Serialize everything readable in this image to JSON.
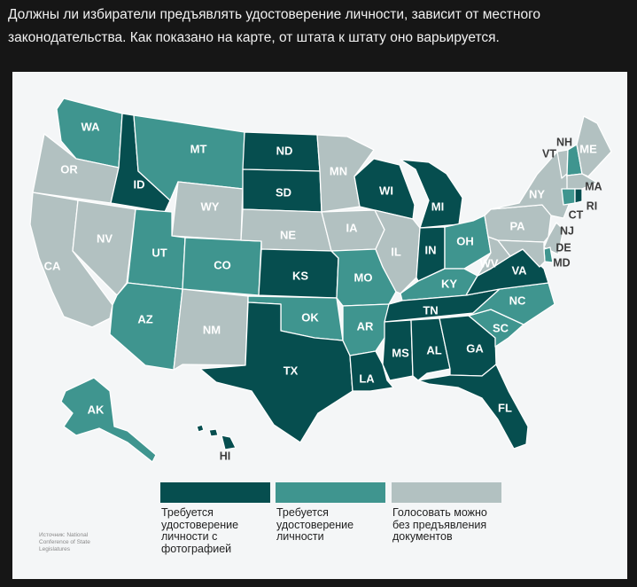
{
  "caption": "Должны ли избиратели предъявлять удостоверение личности, зависит от местного законодательства. Как показано на карте, от штата к штату оно варьируется.",
  "colors": {
    "photo_id": "#064e4f",
    "id": "#3f958f",
    "no_document": "#b2c1c1",
    "border": "#ffffff",
    "panel": "#f4f6f7"
  },
  "legend": {
    "photo_id": "Требуется удостоверение личности с фотографией",
    "id": "Требуется удостоверение личности",
    "no_document": "Голосовать можно без предъявления документов"
  },
  "source": "Источник: National Conference of State Legislatures",
  "states": {
    "WA": {
      "label": "WA",
      "category": "id"
    },
    "OR": {
      "label": "OR",
      "category": "no_document"
    },
    "CA": {
      "label": "CA",
      "category": "no_document"
    },
    "ID": {
      "label": "ID",
      "category": "photo_id"
    },
    "NV": {
      "label": "NV",
      "category": "no_document"
    },
    "MT": {
      "label": "MT",
      "category": "id"
    },
    "WY": {
      "label": "WY",
      "category": "no_document"
    },
    "UT": {
      "label": "UT",
      "category": "id"
    },
    "AZ": {
      "label": "AZ",
      "category": "id"
    },
    "CO": {
      "label": "CO",
      "category": "id"
    },
    "NM": {
      "label": "NM",
      "category": "no_document"
    },
    "ND": {
      "label": "ND",
      "category": "photo_id"
    },
    "SD": {
      "label": "SD",
      "category": "photo_id"
    },
    "NE": {
      "label": "NE",
      "category": "no_document"
    },
    "KS": {
      "label": "KS",
      "category": "photo_id"
    },
    "OK": {
      "label": "OK",
      "category": "id"
    },
    "TX": {
      "label": "TX",
      "category": "photo_id"
    },
    "MN": {
      "label": "MN",
      "category": "no_document"
    },
    "IA": {
      "label": "IA",
      "category": "no_document"
    },
    "MO": {
      "label": "MO",
      "category": "id"
    },
    "AR": {
      "label": "AR",
      "category": "id"
    },
    "LA": {
      "label": "LA",
      "category": "photo_id"
    },
    "WI": {
      "label": "WI",
      "category": "photo_id"
    },
    "IL": {
      "label": "IL",
      "category": "no_document"
    },
    "MI": {
      "label": "MI",
      "category": "photo_id"
    },
    "IN": {
      "label": "IN",
      "category": "photo_id"
    },
    "OH": {
      "label": "OH",
      "category": "id"
    },
    "KY": {
      "label": "KY",
      "category": "id"
    },
    "TN": {
      "label": "TN",
      "category": "photo_id"
    },
    "MS": {
      "label": "MS",
      "category": "photo_id"
    },
    "AL": {
      "label": "AL",
      "category": "photo_id"
    },
    "GA": {
      "label": "GA",
      "category": "photo_id"
    },
    "FL": {
      "label": "FL",
      "category": "photo_id"
    },
    "SC": {
      "label": "SC",
      "category": "id"
    },
    "NC": {
      "label": "NC",
      "category": "id"
    },
    "VA": {
      "label": "VA",
      "category": "photo_id"
    },
    "WV": {
      "label": "WV",
      "category": "no_document"
    },
    "PA": {
      "label": "PA",
      "category": "no_document"
    },
    "NY": {
      "label": "NY",
      "category": "no_document"
    },
    "ME": {
      "label": "ME",
      "category": "no_document"
    },
    "VT": {
      "label": "VT",
      "category": "no_document"
    },
    "NH": {
      "label": "NH",
      "category": "id"
    },
    "MA": {
      "label": "MA",
      "category": "no_document"
    },
    "RI": {
      "label": "RI",
      "category": "photo_id"
    },
    "CT": {
      "label": "CT",
      "category": "id"
    },
    "NJ": {
      "label": "NJ",
      "category": "no_document"
    },
    "DE": {
      "label": "DE",
      "category": "id"
    },
    "MD": {
      "label": "MD",
      "category": "no_document"
    },
    "AK": {
      "label": "AK",
      "category": "id"
    },
    "HI": {
      "label": "HI",
      "category": "photo_id"
    }
  }
}
